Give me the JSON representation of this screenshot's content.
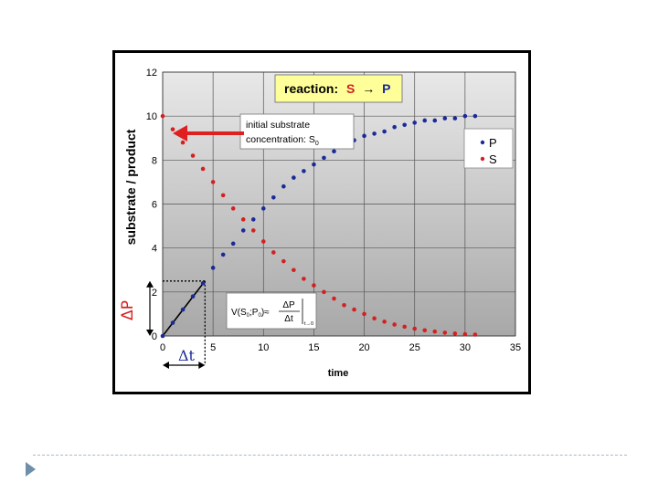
{
  "chart_data": {
    "type": "scatter",
    "title": "",
    "xlabel": "time",
    "ylabel": "substrate / product",
    "xlim": [
      0,
      35
    ],
    "ylim": [
      0,
      12
    ],
    "x_ticks": [
      "0",
      "5",
      "10",
      "15",
      "20",
      "25",
      "30",
      "35"
    ],
    "y_ticks": [
      "0",
      "2",
      "4",
      "6",
      "8",
      "10",
      "12"
    ],
    "grid": true,
    "legend_position": "right",
    "series": [
      {
        "name": "P",
        "color": "#1a2a9a",
        "x": [
          0,
          1,
          2,
          3,
          4,
          5,
          6,
          7,
          8,
          9,
          10,
          11,
          12,
          13,
          14,
          15,
          16,
          17,
          18,
          19,
          20,
          21,
          22,
          23,
          24,
          25,
          26,
          27,
          28,
          29,
          30,
          31
        ],
        "y": [
          0,
          0.6,
          1.2,
          1.8,
          2.4,
          3.1,
          3.7,
          4.2,
          4.8,
          5.3,
          5.8,
          6.3,
          6.8,
          7.2,
          7.5,
          7.8,
          8.1,
          8.4,
          8.7,
          8.9,
          9.1,
          9.2,
          9.3,
          9.5,
          9.6,
          9.7,
          9.8,
          9.8,
          9.9,
          9.9,
          10.0,
          10.0
        ]
      },
      {
        "name": "S",
        "color": "#d42020",
        "x": [
          0,
          1,
          2,
          3,
          4,
          5,
          6,
          7,
          8,
          9,
          10,
          11,
          12,
          13,
          14,
          15,
          16,
          17,
          18,
          19,
          20,
          21,
          22,
          23,
          24,
          25,
          26,
          27,
          28,
          29,
          30,
          31
        ],
        "y": [
          10.0,
          9.4,
          8.8,
          8.2,
          7.6,
          7.0,
          6.4,
          5.8,
          5.3,
          4.8,
          4.3,
          3.8,
          3.4,
          3.0,
          2.6,
          2.3,
          2.0,
          1.7,
          1.4,
          1.2,
          1.0,
          0.8,
          0.65,
          0.52,
          0.42,
          0.33,
          0.26,
          0.2,
          0.15,
          0.11,
          0.08,
          0.06
        ]
      }
    ],
    "annotations": {
      "reaction_label": "reaction:",
      "reaction_s": "S",
      "reaction_arrow": "→",
      "reaction_p": "P",
      "initial_line1": "initial substrate",
      "initial_line2": "concentration: S",
      "initial_sub": "0",
      "delta_p": "ΔP",
      "delta_t": "Δt",
      "velocity_lhs": "V(S",
      "velocity_sub1": "0",
      "velocity_mid": ";P",
      "velocity_sub2": "0",
      "velocity_approx": ")≈",
      "velocity_num": "ΔP",
      "velocity_den": "Δt",
      "velocity_eval": "t→0"
    }
  },
  "colors": {
    "plot_background_top": "#e8e8e8",
    "plot_background_bottom": "#a8a8a8",
    "reaction_box": "#ffff99",
    "slide_bullet": "#6f8fa9"
  }
}
